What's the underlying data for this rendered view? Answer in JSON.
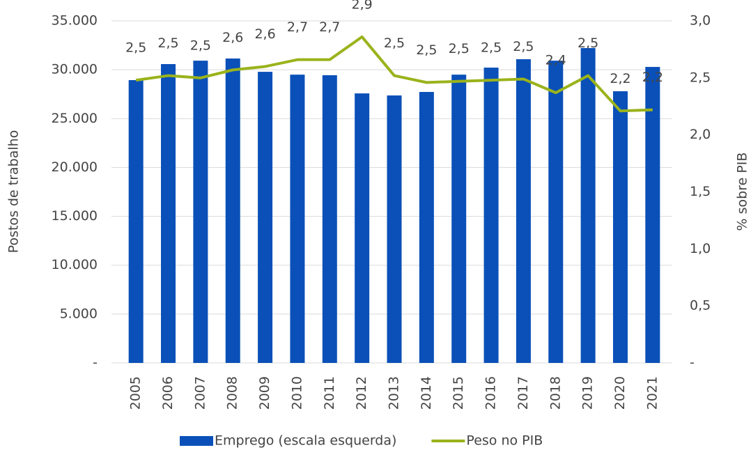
{
  "chart_data": {
    "type": "bar_line",
    "y_label": "Postos de trabalho",
    "y2_label": "% sobre PIB",
    "categories": [
      "2005",
      "2006",
      "2007",
      "2008",
      "2009",
      "2010",
      "2011",
      "2012",
      "2013",
      "2014",
      "2015",
      "2016",
      "2017",
      "2018",
      "2019",
      "2020",
      "2021"
    ],
    "series": [
      {
        "name": "Emprego (escala esquerda)",
        "color": "#0a50b8",
        "kind": "bar",
        "values": [
          28940,
          30580,
          30930,
          31150,
          29790,
          29500,
          29440,
          27580,
          27370,
          27730,
          29500,
          30220,
          31080,
          30930,
          32220,
          27800,
          30290
        ]
      },
      {
        "name": "Peso no PIB",
        "color": "#9ab31c",
        "kind": "line",
        "axis": "y2",
        "values": [
          2.48,
          2.52,
          2.5,
          2.57,
          2.6,
          2.66,
          2.66,
          2.86,
          2.52,
          2.46,
          2.47,
          2.48,
          2.49,
          2.37,
          2.52,
          2.21,
          2.22
        ],
        "value_labels": [
          "2,5",
          "2,5",
          "2,5",
          "2,6",
          "2,6",
          "2,7",
          "2,7",
          "2,9",
          "2,5",
          "2,5",
          "2,5",
          "2,5",
          "2,5",
          "2,4",
          "2,5",
          "2,2",
          "2,2"
        ]
      }
    ],
    "ylim": [
      0,
      35000
    ],
    "yticks": [
      {
        "value": 0,
        "label": "-"
      },
      {
        "value": 5000,
        "label": "5.000"
      },
      {
        "value": 10000,
        "label": "10.000"
      },
      {
        "value": 15000,
        "label": "15.000"
      },
      {
        "value": 20000,
        "label": "20.000"
      },
      {
        "value": 25000,
        "label": "25.000"
      },
      {
        "value": 30000,
        "label": "30.000"
      },
      {
        "value": 35000,
        "label": "35.000"
      }
    ],
    "y2lim": [
      0,
      3
    ],
    "y2ticks": [
      {
        "value": 0,
        "label": "-"
      },
      {
        "value": 0.5,
        "label": "0,5"
      },
      {
        "value": 1,
        "label": "1,0"
      },
      {
        "value": 1.5,
        "label": "1,5"
      },
      {
        "value": 2,
        "label": "2,0"
      },
      {
        "value": 2.5,
        "label": "2,5"
      },
      {
        "value": 3,
        "label": "3,0"
      }
    ],
    "grid": true,
    "legend": "bottom"
  }
}
